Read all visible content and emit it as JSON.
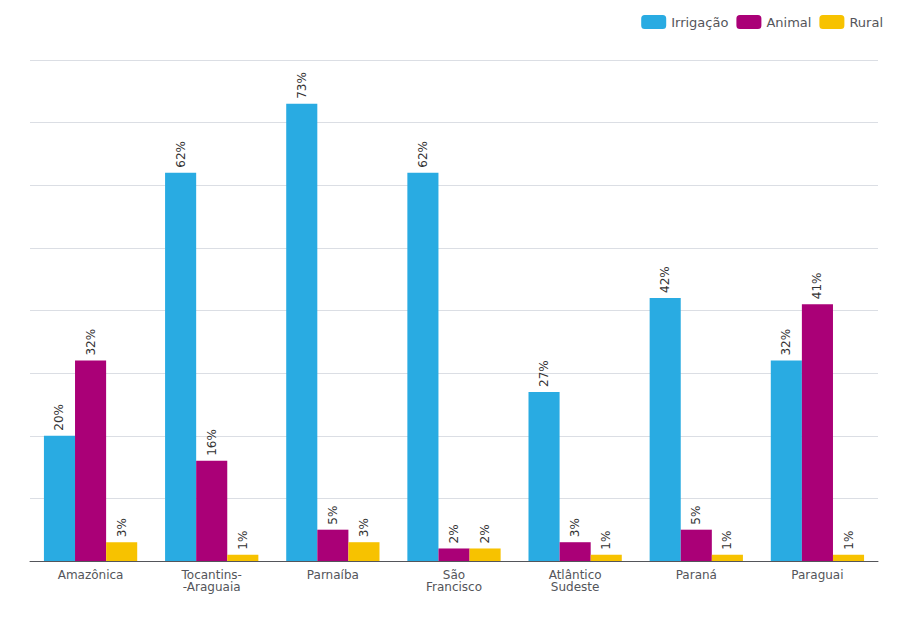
{
  "chart_data": {
    "type": "bar",
    "categories": [
      "Amazônica",
      "Tocantins-\n-Araguaia",
      "Parnaíba",
      "São\nFrancisco",
      "Atlântico\nSudeste",
      "Paraná",
      "Paraguai"
    ],
    "series": [
      {
        "name": "Irrigação",
        "color": "#29ABE2",
        "values": [
          20,
          62,
          73,
          62,
          27,
          42,
          32
        ],
        "value_labels": [
          "20%",
          "62%",
          "73%",
          "62%",
          "27%",
          "42%",
          "32%"
        ]
      },
      {
        "name": "Animal",
        "color": "#AA0077",
        "values": [
          32,
          16,
          5,
          2,
          3,
          5,
          41
        ],
        "value_labels": [
          "32%",
          "16%",
          "5%",
          "2%",
          "3%",
          "5%",
          "41%"
        ]
      },
      {
        "name": "Rural",
        "color": "#F7C200",
        "values": [
          3,
          1,
          3,
          2,
          1,
          1,
          1
        ],
        "value_labels": [
          "3%",
          "1%",
          "3%",
          "2%",
          "1%",
          "1%",
          "1%"
        ]
      }
    ],
    "ylim": [
      0,
      80
    ],
    "yticks": [
      0,
      10,
      20,
      30,
      40,
      50,
      60,
      70,
      80
    ],
    "grid": true,
    "legend": "upper right",
    "data_labels": true,
    "tick_labels": "x"
  }
}
